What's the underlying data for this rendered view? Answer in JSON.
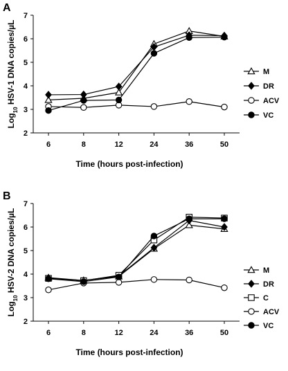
{
  "chart_data": [
    {
      "panel_label": "A",
      "type": "line",
      "categories": [
        "6",
        "8",
        "12",
        "24",
        "36",
        "50"
      ],
      "xlabel": "Time (hours post-infection)",
      "ylabel_parts": [
        "Log",
        "10",
        " HSV-1 DNA copies/µL"
      ],
      "ylim": [
        2,
        7
      ],
      "yticks": [
        2,
        3,
        4,
        5,
        6,
        7
      ],
      "grid": false,
      "legend_position": "right",
      "series": [
        {
          "name": "M",
          "marker": "triangle-open",
          "values": [
            3.4,
            3.47,
            3.72,
            5.78,
            6.33,
            6.1
          ]
        },
        {
          "name": "DR",
          "marker": "diamond-filled",
          "values": [
            3.62,
            3.63,
            3.97,
            5.65,
            6.15,
            6.13
          ]
        },
        {
          "name": "ACV",
          "marker": "circle-open",
          "values": [
            3.12,
            3.08,
            3.18,
            3.12,
            3.33,
            3.1
          ]
        },
        {
          "name": "VC",
          "marker": "circle-filled",
          "values": [
            2.95,
            3.38,
            3.4,
            5.38,
            6.05,
            6.07
          ]
        }
      ]
    },
    {
      "panel_label": "B",
      "type": "line",
      "categories": [
        "6",
        "8",
        "12",
        "24",
        "36",
        "50"
      ],
      "xlabel": "Time (hours post-infection)",
      "ylabel_parts": [
        "Log",
        "10",
        " HSV-2 DNA copies/µL"
      ],
      "ylim": [
        2,
        7
      ],
      "yticks": [
        2,
        3,
        4,
        5,
        6,
        7
      ],
      "grid": false,
      "legend_position": "right",
      "series": [
        {
          "name": "M",
          "marker": "triangle-open",
          "values": [
            3.85,
            3.73,
            3.9,
            5.08,
            6.08,
            5.92
          ]
        },
        {
          "name": "DR",
          "marker": "diamond-filled",
          "values": [
            3.83,
            3.73,
            3.92,
            5.12,
            6.28,
            6.0
          ]
        },
        {
          "name": "C",
          "marker": "square-open",
          "values": [
            3.82,
            3.72,
            3.95,
            5.45,
            6.42,
            6.38
          ]
        },
        {
          "name": "ACV",
          "marker": "circle-open",
          "values": [
            3.33,
            3.62,
            3.65,
            3.77,
            3.75,
            3.42
          ]
        },
        {
          "name": "VC",
          "marker": "circle-filled",
          "values": [
            3.8,
            3.68,
            3.88,
            5.62,
            6.35,
            6.35
          ]
        }
      ]
    }
  ]
}
